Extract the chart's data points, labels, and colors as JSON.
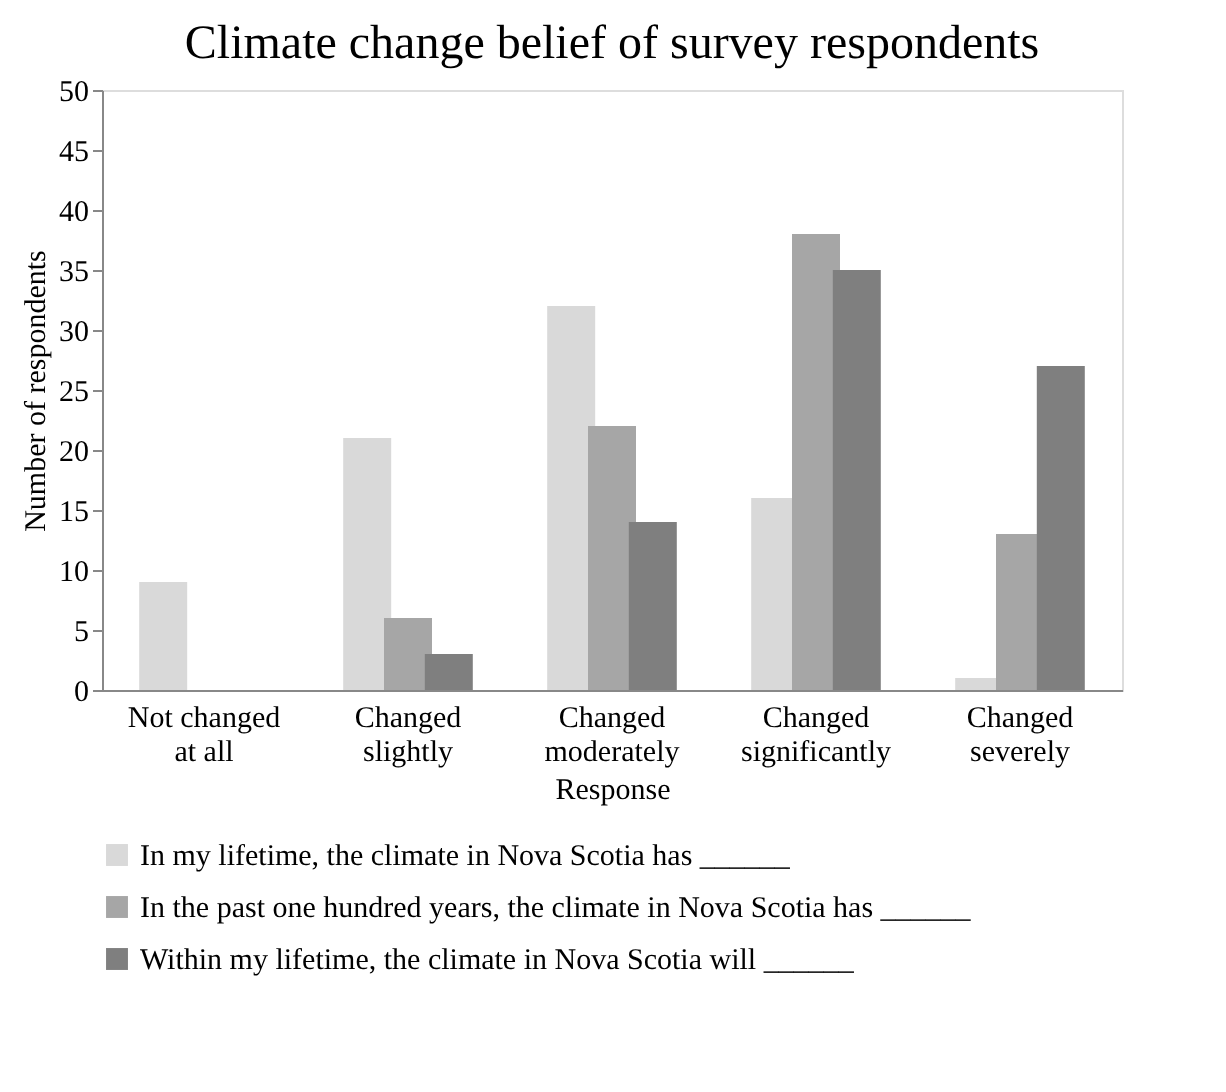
{
  "chart_data": {
    "type": "bar",
    "title": "Climate change belief of survey respondents",
    "xlabel": "Response",
    "ylabel": "Number of respondents",
    "categories": [
      "Not changed at all",
      "Changed slightly",
      "Changed moderately",
      "Changed significantly",
      "Changed severely"
    ],
    "series": [
      {
        "name": "In my lifetime, the climate in Nova Scotia has ______",
        "color": "#d9d9d9",
        "values": [
          9,
          21,
          32,
          16,
          1
        ]
      },
      {
        "name": "In the past one hundred years, the climate in Nova Scotia has ______",
        "color": "#a6a6a6",
        "values": [
          0,
          6,
          22,
          38,
          13
        ]
      },
      {
        "name": "Within my lifetime, the climate in Nova Scotia will ______",
        "color": "#7f7f7f",
        "values": [
          0,
          3,
          14,
          35,
          27
        ]
      }
    ],
    "ylim": [
      0,
      50
    ],
    "yticks": [
      0,
      5,
      10,
      15,
      20,
      25,
      30,
      35,
      40,
      45,
      50
    ],
    "grid": false,
    "legend": "bottom"
  }
}
